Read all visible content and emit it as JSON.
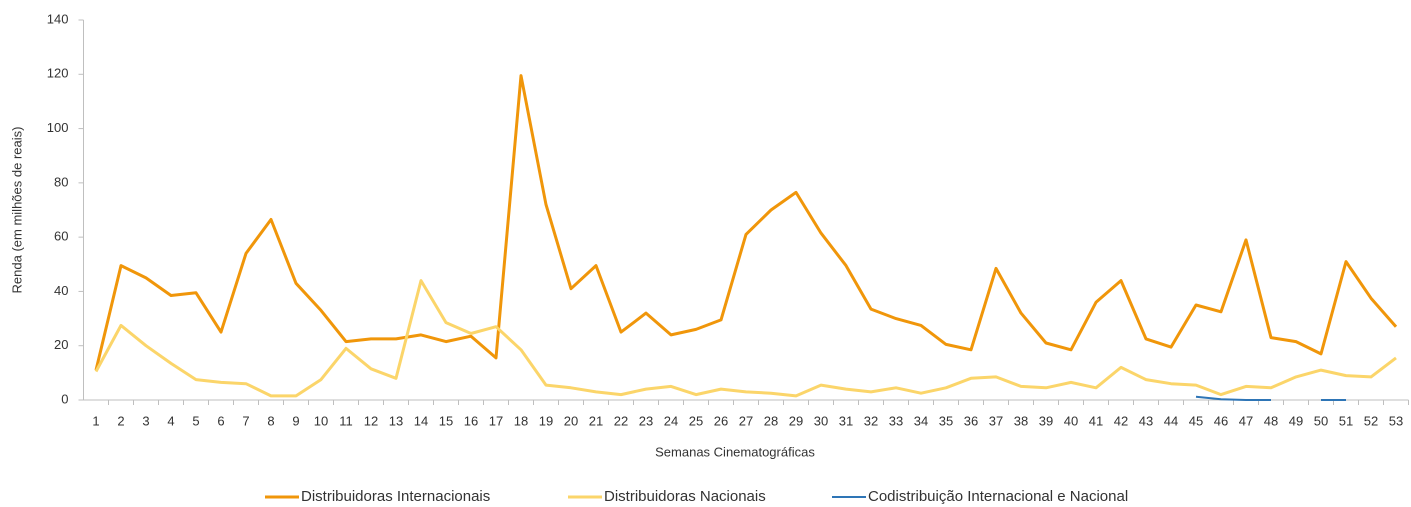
{
  "chart_data": {
    "type": "line",
    "x_label": "Semanas Cinematográficas",
    "y_label": "Renda (em milhões de reais)",
    "categories": [
      "1",
      "2",
      "3",
      "4",
      "5",
      "6",
      "7",
      "8",
      "9",
      "10",
      "11",
      "12",
      "13",
      "14",
      "15",
      "16",
      "17",
      "18",
      "19",
      "20",
      "21",
      "22",
      "23",
      "24",
      "25",
      "26",
      "27",
      "28",
      "29",
      "30",
      "31",
      "32",
      "33",
      "34",
      "35",
      "36",
      "37",
      "38",
      "39",
      "40",
      "41",
      "42",
      "43",
      "44",
      "45",
      "46",
      "47",
      "48",
      "49",
      "50",
      "51",
      "52",
      "53"
    ],
    "series": [
      {
        "name": "Distribuidoras Internacionais",
        "color": "#f0960a",
        "values": [
          11,
          49.5,
          45,
          38.5,
          39.5,
          25,
          54,
          66.5,
          43,
          33,
          21.5,
          22.5,
          22.5,
          24,
          21.5,
          23.5,
          15.5,
          119.5,
          72,
          41,
          49.5,
          25,
          32,
          24,
          26,
          29.5,
          61,
          70,
          76.5,
          61.5,
          49.5,
          33.5,
          30,
          27.5,
          20.5,
          18.5,
          48.5,
          32,
          21,
          18.5,
          36,
          44,
          22.5,
          19.5,
          35,
          32.5,
          59,
          23,
          21.5,
          17,
          51,
          37.5,
          27
        ]
      },
      {
        "name": "Distribuidoras Nacionais",
        "color": "#fbd56a",
        "values": [
          10.5,
          27.5,
          20,
          13.5,
          7.5,
          6.5,
          6,
          1.5,
          1.5,
          7.5,
          19,
          11.5,
          8,
          44,
          28.5,
          24.5,
          27,
          18.5,
          5.5,
          4.5,
          3,
          2,
          4,
          5,
          2,
          4,
          3,
          2.5,
          1.5,
          5.5,
          4,
          3,
          4.5,
          2.5,
          4.5,
          8,
          8.5,
          5,
          4.5,
          6.5,
          4.5,
          12,
          7.5,
          6,
          5.5,
          2,
          5,
          4.5,
          8.5,
          11,
          9,
          8.5,
          15.5
        ]
      },
      {
        "name": "Codistribuição Internacional e Nacional",
        "color": "#2e75b6",
        "values": [
          null,
          null,
          null,
          null,
          null,
          null,
          null,
          null,
          null,
          null,
          null,
          null,
          null,
          null,
          null,
          null,
          null,
          null,
          null,
          null,
          null,
          null,
          null,
          null,
          null,
          null,
          null,
          null,
          null,
          null,
          null,
          null,
          null,
          null,
          null,
          null,
          null,
          null,
          null,
          null,
          null,
          null,
          null,
          null,
          1.2,
          0.3,
          0,
          0,
          null,
          0,
          0,
          null,
          null
        ]
      }
    ],
    "ylim": [
      0,
      140
    ],
    "yticks": [
      0,
      20,
      40,
      60,
      80,
      100,
      120,
      140
    ],
    "grid": false,
    "legend": "bottom"
  }
}
